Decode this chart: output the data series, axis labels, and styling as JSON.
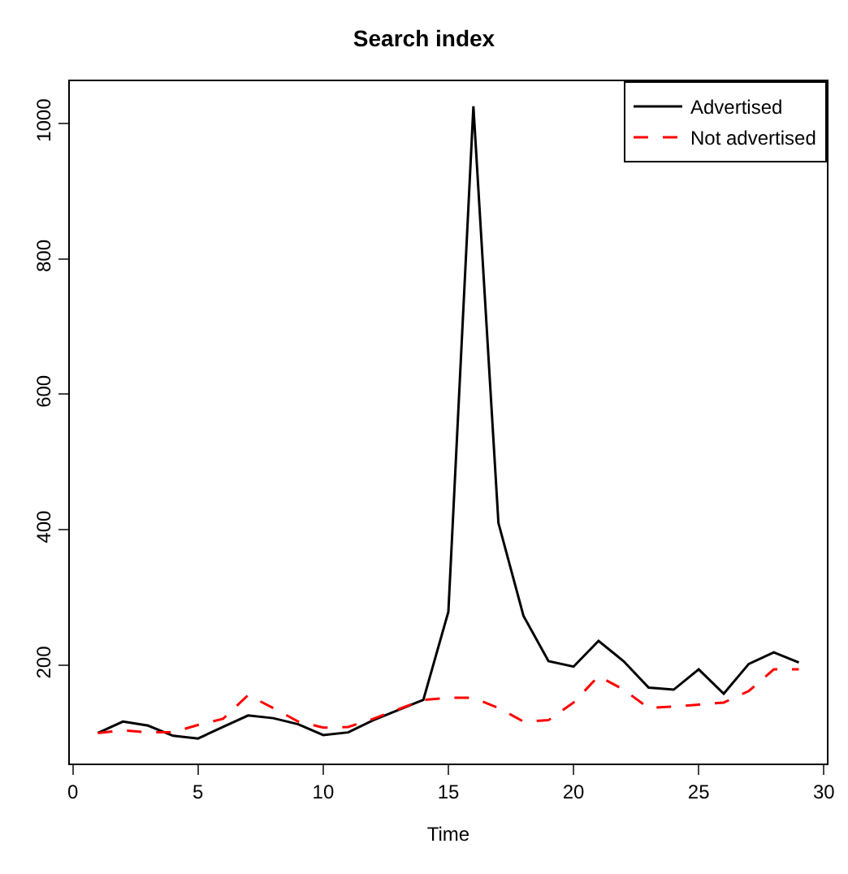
{
  "chart_data": {
    "type": "line",
    "title": "Search index",
    "xlabel": "Time",
    "x": [
      1,
      2,
      3,
      4,
      5,
      6,
      7,
      8,
      9,
      10,
      11,
      12,
      13,
      14,
      15,
      16,
      17,
      18,
      19,
      20,
      21,
      22,
      23,
      24,
      25,
      26,
      27,
      28,
      29
    ],
    "series": [
      {
        "name": "Advertised",
        "color": "#000000",
        "line_style": "solid",
        "values": [
          100,
          117,
          111,
          96,
          92,
          109,
          126,
          122,
          113,
          97,
          101,
          119,
          134,
          149,
          279,
          1025,
          410,
          273,
          206,
          198,
          236,
          206,
          167,
          164,
          194,
          158,
          202,
          219,
          204
        ]
      },
      {
        "name": "Not advertised",
        "color": "#ff0000",
        "line_style": "dashed",
        "values": [
          100,
          104,
          101,
          101,
          112,
          121,
          156,
          137,
          117,
          108,
          109,
          121,
          135,
          149,
          152,
          152,
          137,
          117,
          119,
          145,
          184,
          164,
          137,
          139,
          142,
          145,
          162,
          194,
          194
        ]
      }
    ],
    "xlim": [
      -0.12,
      30.12
    ],
    "ylim": [
      55,
      1062
    ],
    "xticks": [
      0,
      5,
      10,
      15,
      20,
      25,
      30
    ],
    "yticks": [
      200,
      400,
      600,
      800,
      1000
    ],
    "legend": "top right",
    "marker": "none"
  }
}
